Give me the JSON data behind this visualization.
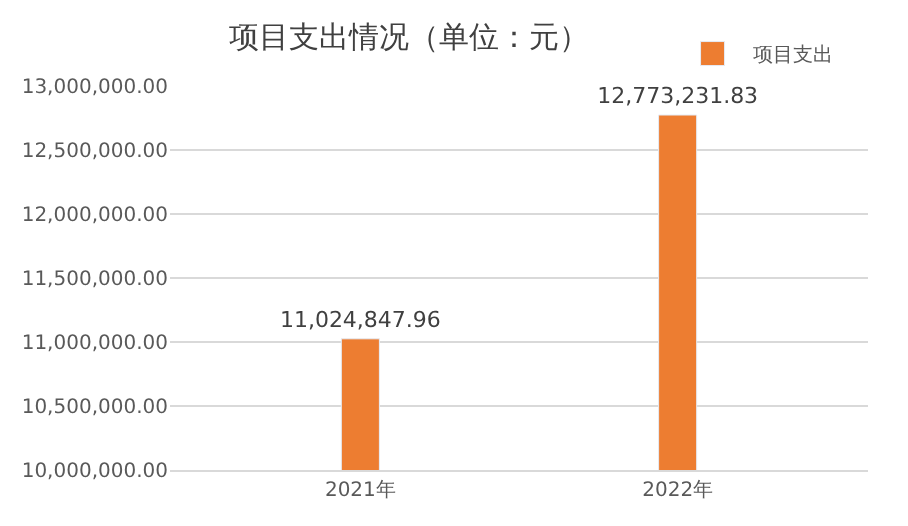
{
  "chart_data": {
    "type": "bar",
    "title": "项目支出情况（单位：元）",
    "categories": [
      "2021年",
      "2022年"
    ],
    "series": [
      {
        "name": "项目支出",
        "color": "#ed7d31",
        "values": [
          11024847.96,
          12773231.83
        ],
        "value_labels": [
          "11,024,847.96",
          "12,773,231.83"
        ]
      }
    ],
    "ylim": [
      10000000,
      13000000
    ],
    "yticks": [
      {
        "value": 10000000,
        "label": "10,000,000.00"
      },
      {
        "value": 10500000,
        "label": "10,500,000.00"
      },
      {
        "value": 11000000,
        "label": "11,000,000.00"
      },
      {
        "value": 11500000,
        "label": "11,500,000.00"
      },
      {
        "value": 12000000,
        "label": "12,000,000.00"
      },
      {
        "value": 12500000,
        "label": "12,500,000.00"
      },
      {
        "value": 13000000,
        "label": "13,000,000.00"
      }
    ],
    "grid": "y",
    "legend": "top right"
  }
}
